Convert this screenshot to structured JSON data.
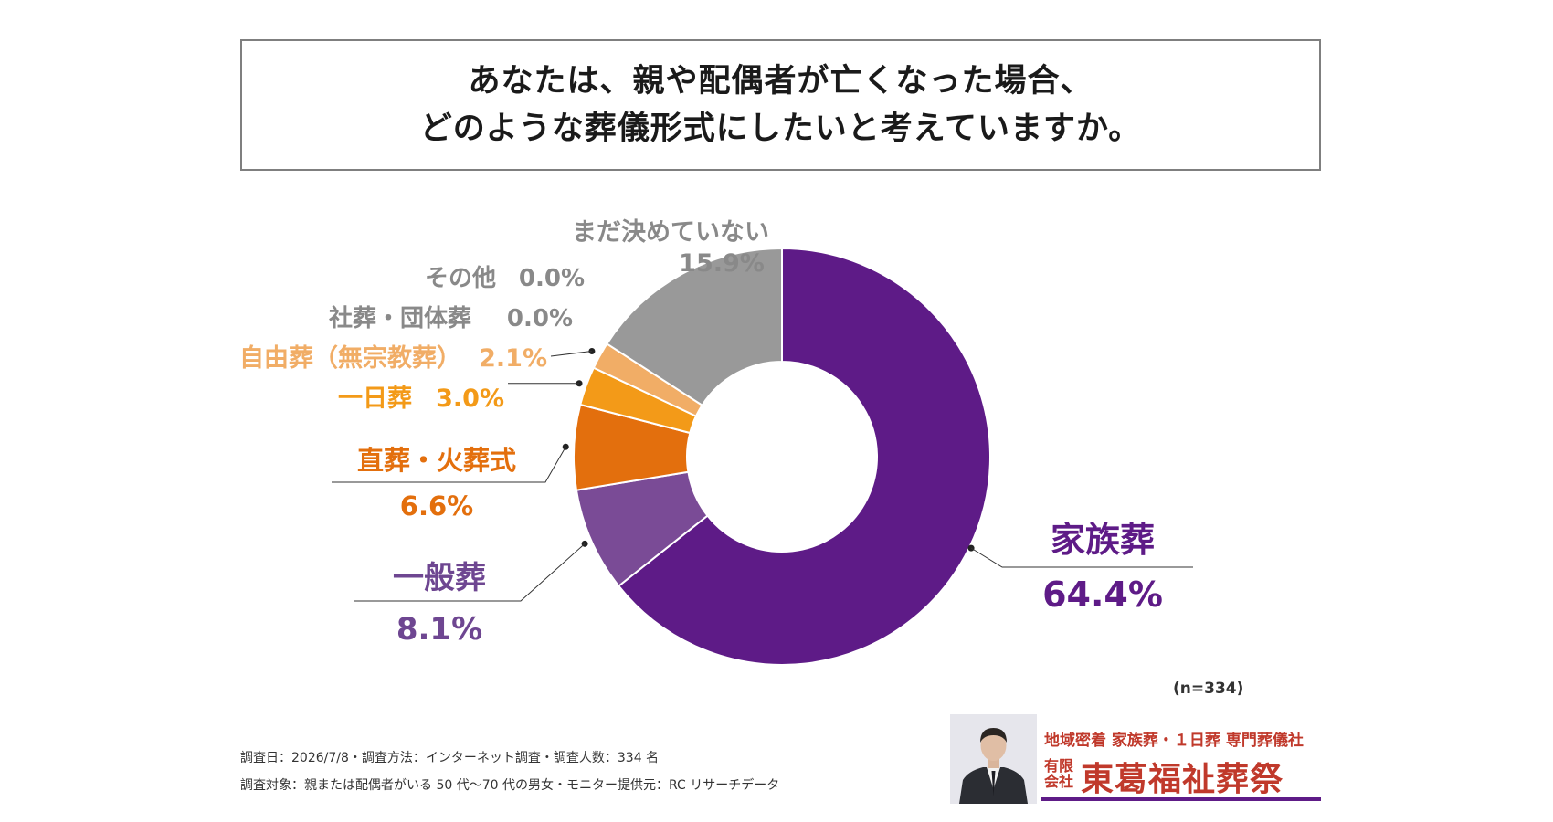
{
  "title": {
    "line1": "あなたは、親や配偶者が亡くなった場合、",
    "line2": "どのような葬儀形式にしたいと考えていますか。"
  },
  "chart_data": {
    "type": "pie",
    "variant": "donut",
    "start": "top, clockwise",
    "categories": [
      "家族葬",
      "一般葬",
      "直葬・火葬式",
      "一日葬",
      "自由葬（無宗教葬）",
      "社葬・団体葬",
      "その他",
      "まだ決めていない"
    ],
    "values": [
      64.4,
      8.1,
      6.6,
      3.0,
      2.1,
      0.0,
      0.0,
      15.9
    ],
    "value_labels": [
      "64.4%",
      "8.1%",
      "6.6%",
      "3.0%",
      "2.1%",
      "0.0%",
      "0.0%",
      "15.9%"
    ],
    "unit": "%",
    "colors": [
      "#5e1b87",
      "#7a4b96",
      "#e36f0d",
      "#f39a18",
      "#f1ad66",
      "#999999",
      "#999999",
      "#999999"
    ],
    "label_colors": [
      "#5e1b87",
      "#6e4691",
      "#e36f0d",
      "#f39a18",
      "#f1ad66",
      "#898989",
      "#898989",
      "#898989"
    ],
    "sample_note": "(n=334)"
  },
  "footer": {
    "line1": "調査日：2026/7/8・調査方法：インターネット調査・調査人数：334 名",
    "line2": "調査対象：親または配偶者がいる 50 代〜70 代の男女・モニター提供元：RC リサーチデータ"
  },
  "brand": {
    "tagline": "地域密着 家族葬・１日葬 専門葬儀社",
    "kind_line1": "有限",
    "kind_line2": "会社",
    "name": "東葛福祉葬祭",
    "accent_color": "#c0392b",
    "underline_color": "#5e1b87"
  }
}
